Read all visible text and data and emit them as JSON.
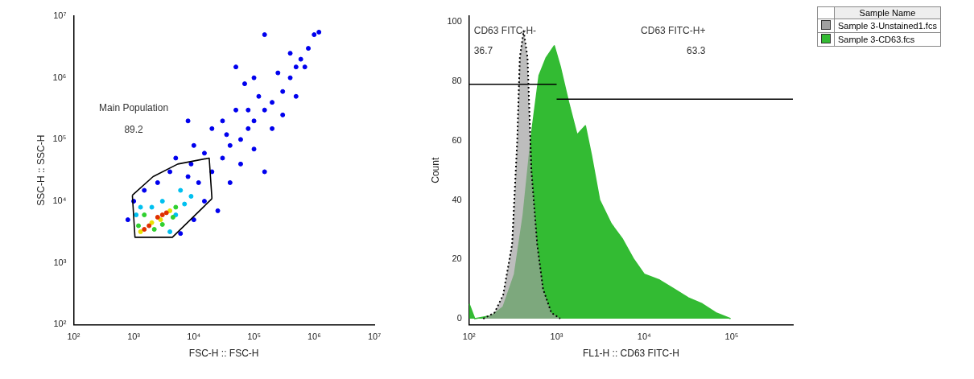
{
  "chart_data": [
    {
      "type": "scatter",
      "xlabel": "FSC-H :: FSC-H",
      "ylabel": "SSC-H :: SSC-H",
      "log": "xy",
      "grid": false,
      "marker": "circle",
      "xlim": [
        100,
        10000000
      ],
      "ylim": [
        100,
        10000000
      ],
      "xticks": [
        {
          "value": 100,
          "label": "10²"
        },
        {
          "value": 1000,
          "label": "10³"
        },
        {
          "value": 10000,
          "label": "10⁴"
        },
        {
          "value": 100000,
          "label": "10⁵"
        },
        {
          "value": 1000000,
          "label": "10⁶"
        },
        {
          "value": 10000000,
          "label": "10⁷"
        }
      ],
      "yticks": [
        {
          "value": 100,
          "label": "10²"
        },
        {
          "value": 1000,
          "label": "10³"
        },
        {
          "value": 10000,
          "label": "10⁴"
        },
        {
          "value": 100000,
          "label": "10⁵"
        },
        {
          "value": 1000000,
          "label": "10⁶"
        },
        {
          "value": 10000000,
          "label": "10⁷"
        }
      ],
      "series": [
        {
          "color": "#0000ee",
          "x": [
            1000,
            1500,
            2500,
            4000,
            8000,
            12000,
            15000,
            20000,
            30000,
            40000,
            60000,
            80000,
            100000,
            150000,
            200000,
            300000,
            400000,
            500000,
            600000,
            800000,
            1000000,
            1200000,
            150000,
            50000,
            70000,
            30000,
            20000,
            10000,
            5000,
            60000,
            100000,
            200000,
            300000,
            500000,
            80000,
            120000,
            250000,
            400000,
            700000,
            40000,
            25000,
            10000,
            6000,
            15000,
            50000,
            9000,
            35000,
            150000,
            100000,
            8000,
            800
          ],
          "values": [
            10000,
            15000,
            20000,
            30000,
            25000,
            20000,
            10000,
            30000,
            50000,
            80000,
            100000,
            150000,
            200000,
            300000,
            400000,
            600000,
            1000000,
            1500000,
            2000000,
            3000000,
            5000000,
            5500000,
            5000000,
            1500000,
            800000,
            200000,
            150000,
            80000,
            50000,
            40000,
            70000,
            150000,
            250000,
            500000,
            300000,
            500000,
            1200000,
            2500000,
            1500000,
            20000,
            7000,
            5000,
            3000,
            60000,
            300000,
            40000,
            120000,
            30000,
            1000000,
            200000,
            5000
          ]
        },
        {
          "color": "#00c0f0",
          "x": [
            1100,
            2000,
            5000,
            7000,
            3000,
            6000,
            1300,
            9000,
            4000
          ],
          "values": [
            6000,
            8000,
            6000,
            9000,
            10000,
            15000,
            8000,
            12000,
            3200
          ]
        },
        {
          "color": "#30d030",
          "x": [
            1200,
            2200,
            3000,
            5000,
            1500,
            4500
          ],
          "values": [
            4000,
            3500,
            4200,
            8000,
            6000,
            5500
          ]
        },
        {
          "color": "#e8e000",
          "x": [
            1300,
            2000,
            4000,
            2800
          ],
          "values": [
            3200,
            4500,
            7000,
            5000
          ]
        },
        {
          "color": "#e03000",
          "x": [
            1500,
            1800,
            3000,
            3500,
            2500
          ],
          "values": [
            3500,
            4000,
            6000,
            6500,
            5500
          ]
        },
        {
          "type": "line",
          "color": "#000000",
          "marker": "none",
          "x": [
            950,
            1050,
            4400,
            20000
          ],
          "values": [
            12500,
            2600,
            2600,
            11000
          ]
        },
        {
          "type": "line",
          "color": "#000000",
          "marker": "none",
          "x": [
            950,
            2100,
            5400,
            18000,
            20000
          ],
          "values": [
            12500,
            25000,
            40000,
            50000,
            11000
          ]
        }
      ],
      "annotations": [
        "Main Population",
        "89.2"
      ]
    },
    {
      "type": "area",
      "xlabel": "FL1-H :: CD63 FITC-H",
      "ylabel": "Count",
      "log": "x",
      "grid": false,
      "legend": "top right",
      "legend_title": "Sample Name",
      "marker": "none",
      "xlim": [
        100,
        500000
      ],
      "ylim": [
        -2,
        102
      ],
      "xticks": [
        {
          "value": 100,
          "label": "10²"
        },
        {
          "value": 1000,
          "label": "10³"
        },
        {
          "value": 10000,
          "label": "10⁴"
        },
        {
          "value": 100000,
          "label": "10⁵"
        }
      ],
      "yticks": [
        0,
        20,
        40,
        60,
        80,
        100
      ],
      "series": [
        {
          "name": "Sample 3-CD63.fcs",
          "color": "#33bb33",
          "x": [
            100,
            116,
            180,
            245,
            330,
            415,
            515,
            630,
            760,
            940,
            1100,
            1370,
            1710,
            2130,
            2500,
            3100,
            4200,
            5600,
            7600,
            10000,
            15000,
            22000,
            32000,
            46000,
            66000,
            97000
          ],
          "values": [
            5,
            0,
            1,
            4,
            15,
            35,
            62,
            82,
            88,
            92,
            85,
            73,
            62,
            65,
            55,
            40,
            32,
            27,
            20,
            15,
            13,
            10,
            7,
            5,
            2,
            0
          ]
        },
        {
          "name": "Sample 3-Unstained1.fcs",
          "color": "#a0a0a0",
          "line_style": "dotted",
          "x": [
            145,
            195,
            245,
            310,
            355,
            380,
            420,
            465,
            515,
            600,
            700,
            870,
            1100
          ],
          "values": [
            0,
            2,
            8,
            25,
            60,
            88,
            97,
            88,
            50,
            25,
            10,
            2,
            0
          ]
        },
        {
          "type": "line",
          "color": "#000000",
          "x": [
            100,
            1000
          ],
          "values": [
            79,
            79
          ]
        },
        {
          "type": "line",
          "color": "#000000",
          "x": [
            1000,
            500000
          ],
          "values": [
            74,
            74
          ]
        }
      ],
      "annotations": [
        "CD63 FITC-H-",
        "36.7",
        "CD63 FITC-H+",
        "63.3"
      ]
    }
  ]
}
